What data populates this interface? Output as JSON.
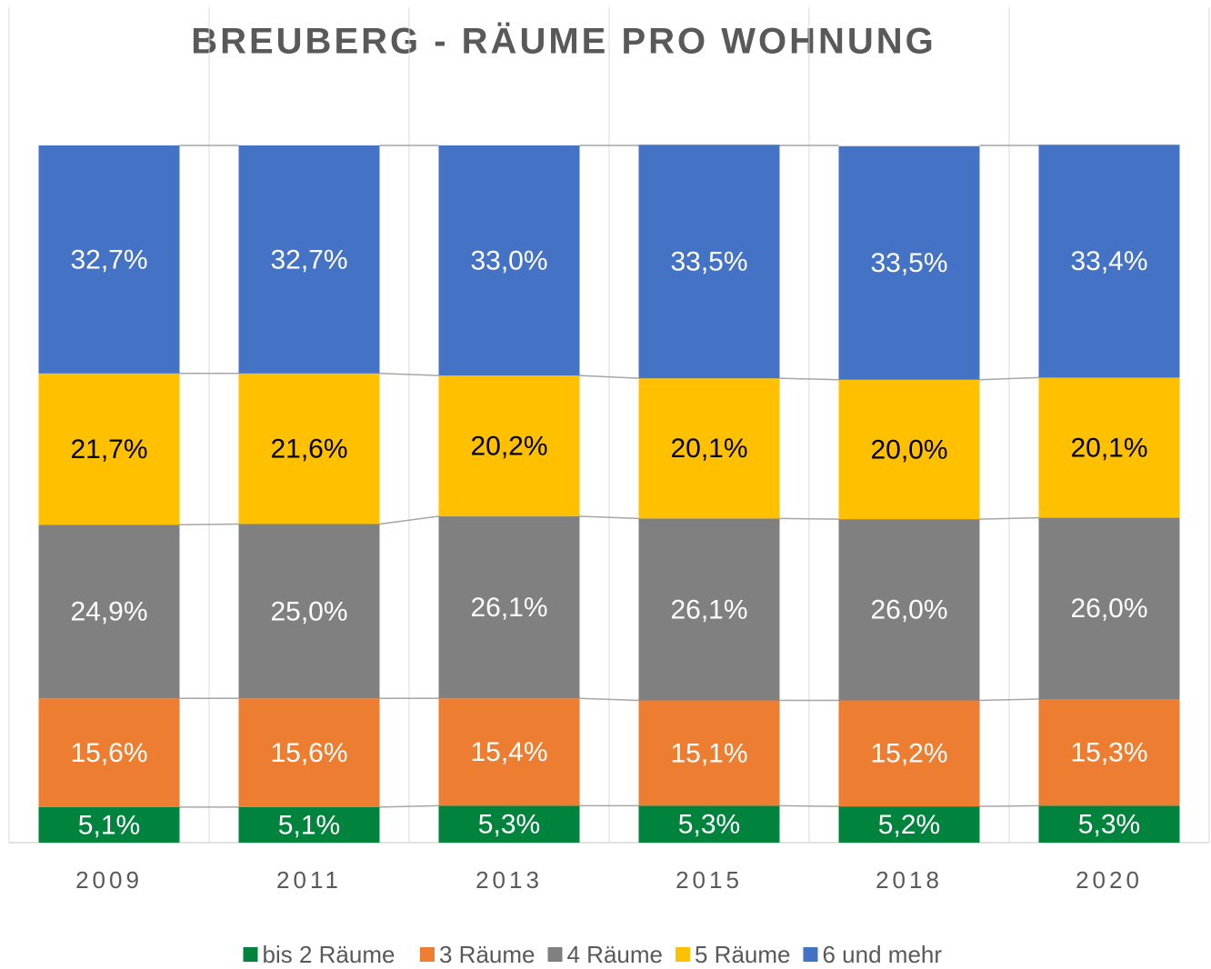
{
  "chart_data": {
    "type": "stacked_bar",
    "title": "BREUBERG - RÄUME PRO WOHNUNG",
    "categories": [
      "2009",
      "2011",
      "2013",
      "2015",
      "2018",
      "2020"
    ],
    "ylim": [
      0,
      100
    ],
    "legend": "bottom",
    "series": [
      {
        "name": "bis 2 Räume",
        "color": "#00843d",
        "label_color": "#ffffff",
        "values": [
          5.1,
          5.1,
          5.3,
          5.3,
          5.2,
          5.3
        ],
        "value_labels": [
          "5,1%",
          "5,1%",
          "5,3%",
          "5,3%",
          "5,2%",
          "5,3%"
        ]
      },
      {
        "name": "3 Räume",
        "color": "#ed7d31",
        "label_color": "#ffffff",
        "values": [
          15.6,
          15.6,
          15.4,
          15.1,
          15.2,
          15.3
        ],
        "value_labels": [
          "15,6%",
          "15,6%",
          "15,4%",
          "15,1%",
          "15,2%",
          "15,3%"
        ]
      },
      {
        "name": "4 Räume",
        "color": "#808080",
        "label_color": "#ffffff",
        "values": [
          24.9,
          25.0,
          26.1,
          26.1,
          26.0,
          26.0
        ],
        "value_labels": [
          "24,9%",
          "25,0%",
          "26,1%",
          "26,1%",
          "26,0%",
          "26,0%"
        ]
      },
      {
        "name": "5 Räume",
        "color": "#ffc000",
        "label_color": "#000000",
        "values": [
          21.7,
          21.6,
          20.2,
          20.1,
          20.0,
          20.1
        ],
        "value_labels": [
          "21,7%",
          "21,6%",
          "20,2%",
          "20,1%",
          "20,0%",
          "20,1%"
        ]
      },
      {
        "name": "6 und mehr",
        "color": "#4472c4",
        "label_color": "#ffffff",
        "values": [
          32.7,
          32.7,
          33.0,
          33.5,
          33.5,
          33.4
        ],
        "value_labels": [
          "32,7%",
          "32,7%",
          "33,0%",
          "33,5%",
          "33,5%",
          "33,4%"
        ]
      }
    ]
  }
}
